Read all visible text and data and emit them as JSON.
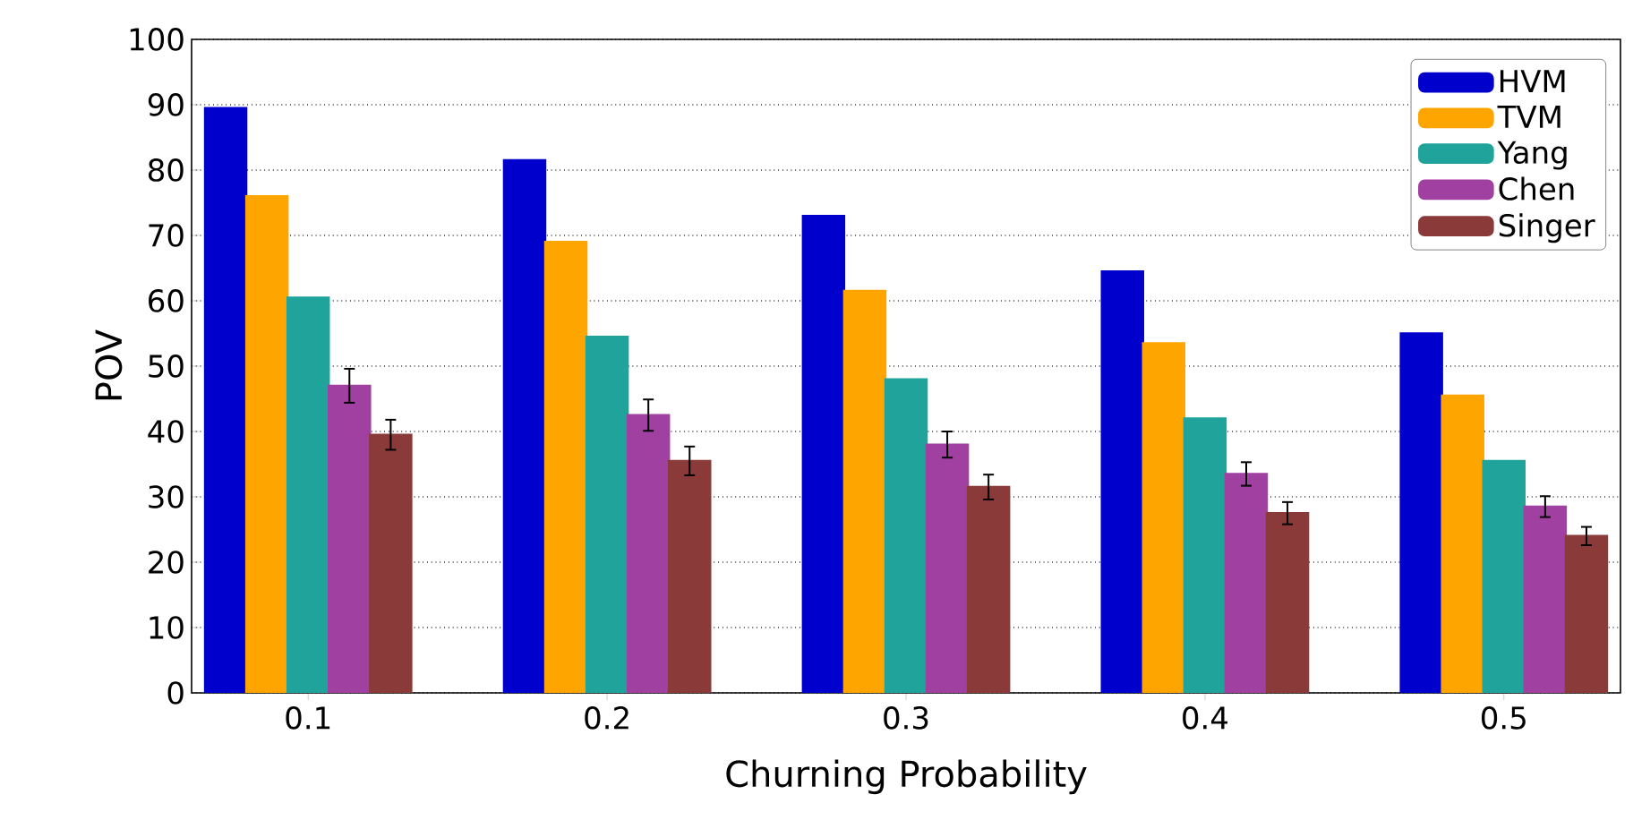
{
  "chart_data": {
    "type": "bar",
    "xlabel": "Churning Probability",
    "ylabel": "POV",
    "categories": [
      "0.1",
      "0.2",
      "0.3",
      "0.4",
      "0.5"
    ],
    "series": [
      {
        "name": "HVM",
        "color": "#0000cc",
        "values": [
          89.5,
          81.5,
          73,
          64.5,
          55
        ]
      },
      {
        "name": "TVM",
        "color": "#ffa500",
        "values": [
          76,
          69,
          61.5,
          53.5,
          45.5
        ]
      },
      {
        "name": "Yang",
        "color": "#20a39a",
        "values": [
          60.5,
          54.5,
          48,
          42,
          35.5
        ]
      },
      {
        "name": "Chen",
        "color": "#a040a0",
        "values": [
          47,
          42.5,
          38,
          33.5,
          28.5
        ],
        "errors": [
          2.6,
          2.4,
          2.0,
          1.8,
          1.6
        ]
      },
      {
        "name": "Singer",
        "color": "#8b3a3a",
        "values": [
          39.5,
          35.5,
          31.5,
          27.5,
          24
        ],
        "errors": [
          2.3,
          2.2,
          1.9,
          1.7,
          1.4
        ]
      }
    ],
    "ylim": [
      0,
      100
    ],
    "yticks": [
      0,
      10,
      20,
      30,
      40,
      50,
      60,
      70,
      80,
      90,
      100
    ],
    "grid": "y",
    "legend": "top right"
  }
}
